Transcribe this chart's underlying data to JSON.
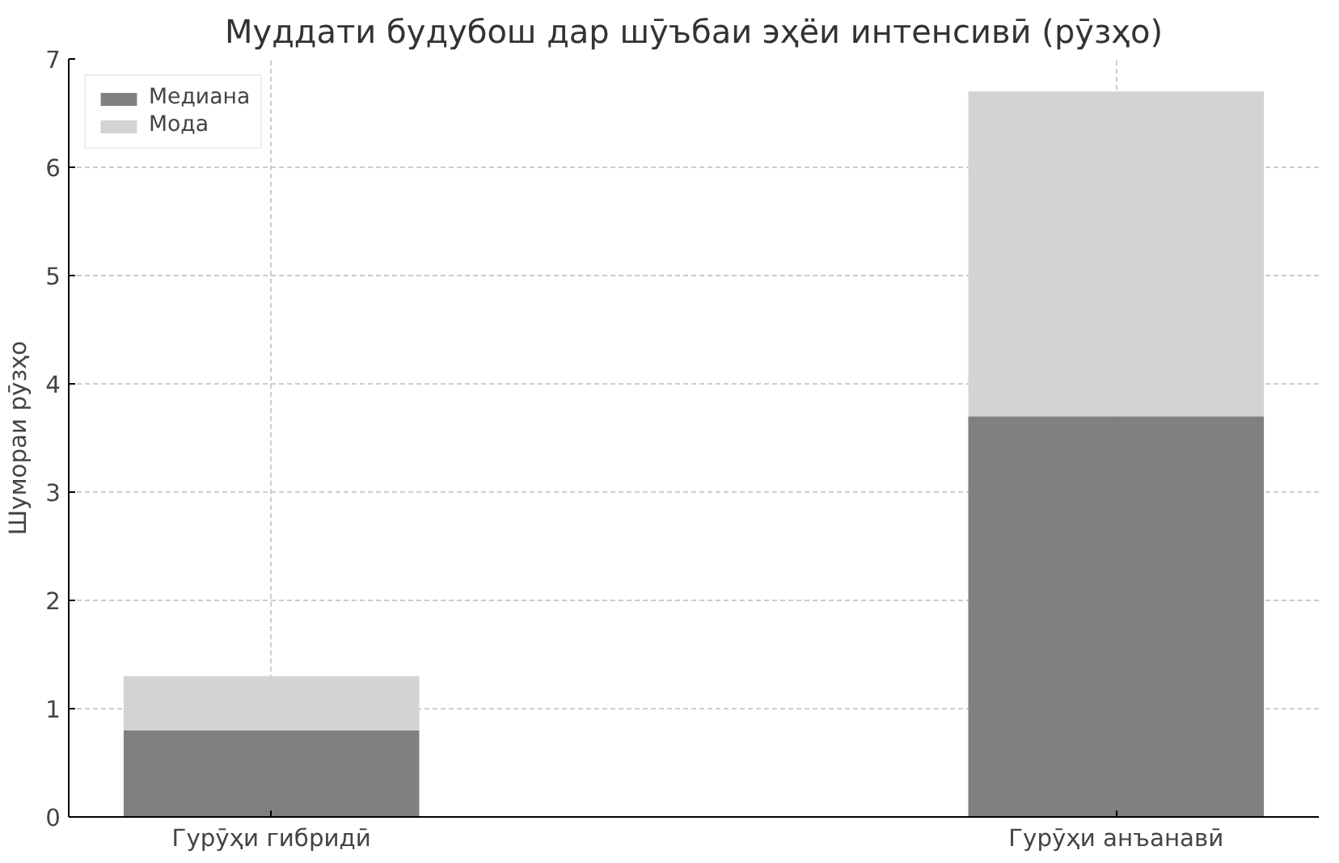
{
  "chart_data": {
    "type": "bar",
    "title": "Муддати будубош дар шӯъбаи эҳёи интенсивӣ (рӯзҳо)",
    "ylabel": "Шумораи рӯзҳо",
    "categories": [
      "Гурӯҳи гибридӣ",
      "Гурӯҳи анъанавӣ"
    ],
    "stacked": true,
    "series": [
      {
        "name": "Медиана",
        "color": "#808080",
        "values": [
          0.8,
          3.7
        ]
      },
      {
        "name": "Мода",
        "color": "#d3d3d3",
        "values": [
          0.5,
          3.0
        ]
      }
    ],
    "ylim": [
      0,
      7
    ],
    "yticks": [
      0,
      1,
      2,
      3,
      4,
      5,
      6,
      7
    ],
    "grid": true,
    "legend": "top left"
  }
}
